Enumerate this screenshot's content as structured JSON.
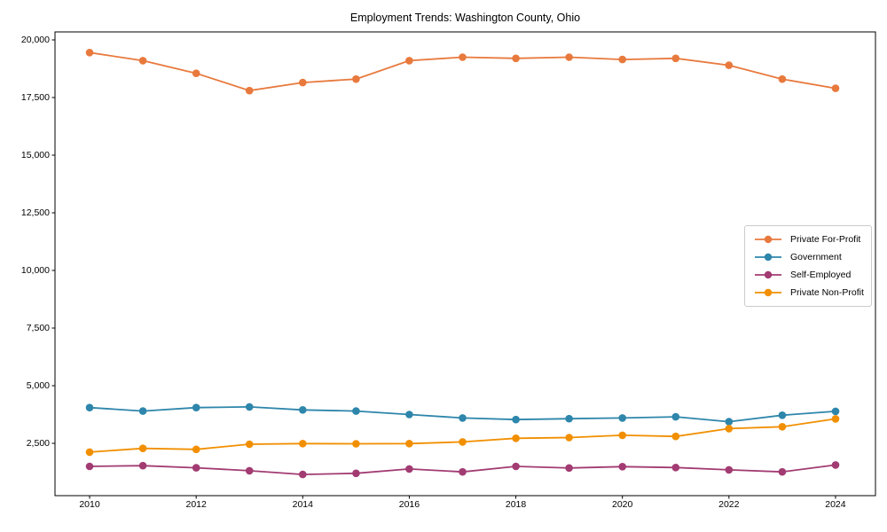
{
  "chart_data": {
    "type": "line",
    "title": "Employment Trends: Washington County, Ohio",
    "xlabel": "",
    "ylabel": "",
    "x": [
      2010,
      2011,
      2012,
      2013,
      2014,
      2015,
      2016,
      2017,
      2018,
      2019,
      2020,
      2021,
      2022,
      2023,
      2024
    ],
    "series": [
      {
        "name": "Private For-Profit",
        "color": "#E8793D",
        "values": [
          19450,
          19100,
          18550,
          17800,
          18150,
          18300,
          19100,
          19250,
          19200,
          19250,
          19150,
          19200,
          18900,
          18300,
          17900
        ]
      },
      {
        "name": "Government",
        "color": "#2E86AB",
        "values": [
          4050,
          3900,
          4050,
          4080,
          3950,
          3900,
          3750,
          3600,
          3530,
          3570,
          3600,
          3650,
          3440,
          3720,
          3890
        ]
      },
      {
        "name": "Self-Employed",
        "color": "#A23B72",
        "values": [
          1500,
          1530,
          1440,
          1310,
          1150,
          1200,
          1390,
          1260,
          1500,
          1430,
          1490,
          1450,
          1350,
          1260,
          1560
        ]
      },
      {
        "name": "Private Non-Profit",
        "color": "#F18F01",
        "values": [
          2120,
          2280,
          2240,
          2460,
          2490,
          2480,
          2490,
          2560,
          2720,
          2750,
          2850,
          2800,
          3140,
          3220,
          3560
        ]
      }
    ],
    "x_ticks": [
      2010,
      2012,
      2014,
      2016,
      2018,
      2020,
      2022,
      2024
    ],
    "y_ticks": [
      2500,
      5000,
      7500,
      10000,
      12500,
      15000,
      17500,
      20000
    ],
    "xlim": [
      2009.35,
      2024.75
    ],
    "ylim": [
      231,
      20346
    ],
    "grid": false,
    "legend_position": "center-right",
    "background": "#ffffff",
    "axis_color": "#000000",
    "line_width": 1.8,
    "marker": "circle",
    "marker_radius": 4.3
  }
}
